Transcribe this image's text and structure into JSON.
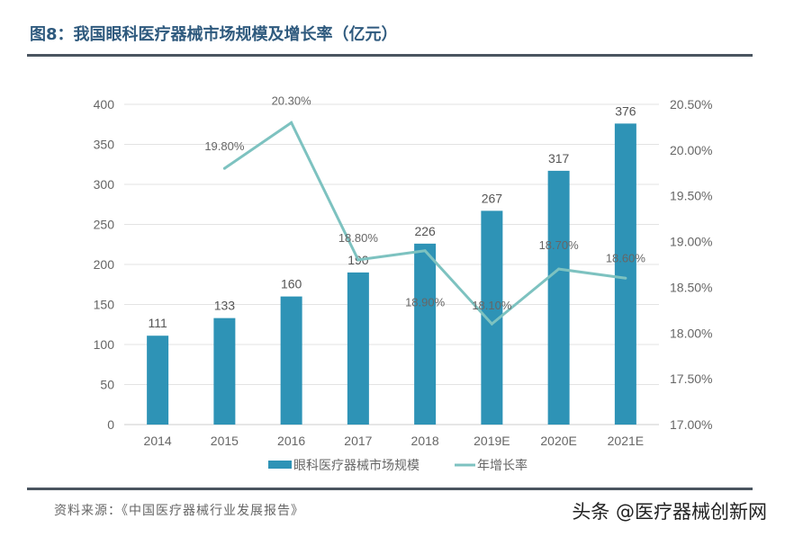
{
  "title": "图8：我国眼科医疗器械市场规模及增长率（亿元）",
  "source": "资料来源：《中国医疗器械行业发展报告》",
  "watermark": "头条 @医疗器械创新网",
  "chart_data": {
    "type": "bar+line",
    "title": "图8：我国眼科医疗器械市场规模及增长率（亿元）",
    "categories": [
      "2014",
      "2015",
      "2016",
      "2017",
      "2018",
      "2019E",
      "2020E",
      "2021E"
    ],
    "series": [
      {
        "name": "眼科医疗器械市场规模",
        "type": "bar",
        "axis": "left",
        "color": "#2e93b6",
        "values": [
          111,
          133,
          160,
          190,
          226,
          267,
          317,
          376
        ],
        "labels": [
          "111",
          "133",
          "160",
          "190",
          "226",
          "267",
          "317",
          "376"
        ]
      },
      {
        "name": "年增长率",
        "type": "line",
        "axis": "right",
        "color": "#7dc2c0",
        "values": [
          null,
          19.8,
          20.3,
          18.8,
          18.9,
          18.1,
          18.7,
          18.6
        ],
        "labels": [
          "",
          "19.80%",
          "20.30%",
          "18.80%",
          "18.90%",
          "18.10%",
          "18.70%",
          "18.60%"
        ]
      }
    ],
    "y_left": {
      "min": 0,
      "max": 400,
      "ticks": [
        "0",
        "50",
        "100",
        "150",
        "200",
        "250",
        "300",
        "350",
        "400"
      ]
    },
    "y_right": {
      "min": 17,
      "max": 20.5,
      "ticks": [
        "17.00%",
        "17.50%",
        "18.00%",
        "18.50%",
        "19.00%",
        "19.50%",
        "20.00%",
        "20.50%"
      ]
    },
    "grid": true,
    "legend": "bottom"
  }
}
